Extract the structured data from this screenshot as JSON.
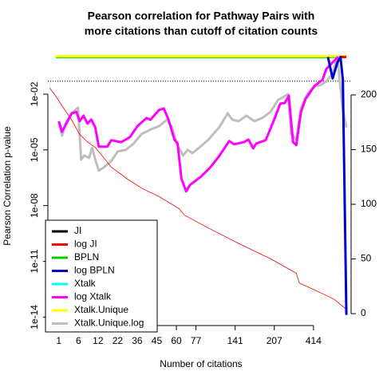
{
  "chart_data": {
    "type": "line",
    "title": [
      "Pearson correlation for Pathway Pairs with",
      "more citations than cutoff of citation counts"
    ],
    "xlabel": "Number of citations",
    "ylabel": "Pearson Correlation p-value",
    "xlim": [
      -1.8,
      75.6
    ],
    "xticks": [
      {
        "value": 1,
        "label": "1"
      },
      {
        "value": 6,
        "label": "6"
      },
      {
        "value": 11,
        "label": "12"
      },
      {
        "value": 16,
        "label": "22"
      },
      {
        "value": 21,
        "label": "36"
      },
      {
        "value": 26,
        "label": "45"
      },
      {
        "value": 31,
        "label": "60"
      },
      {
        "value": 36,
        "label": "77"
      },
      {
        "value": 46,
        "label": "141"
      },
      {
        "value": 56,
        "label": "207"
      },
      {
        "value": 66,
        "label": "414"
      }
    ],
    "ylim": [
      3.5e-15,
      3.76
    ],
    "log_y": true,
    "yticks": [
      {
        "value": 1e-14,
        "label": "1e-14"
      },
      {
        "value": 1e-11,
        "label": "1e-11"
      },
      {
        "value": 1e-08,
        "label": "1e-08"
      },
      {
        "value": 1e-05,
        "label": "1e-05"
      },
      {
        "value": 0.01,
        "label": "1e-02"
      }
    ],
    "y2lim": [
      -10.9,
      244.5
    ],
    "y2ticks": [
      0,
      50,
      100,
      150,
      200
    ],
    "hline": 0.05,
    "legend": "bottom-left",
    "series": [
      {
        "name": "JI",
        "color": "#000000",
        "width": 3,
        "x": [],
        "values": []
      },
      {
        "name": "log JI",
        "color": "#ff0000",
        "width": 3,
        "x": [
          72.9,
          74.4
        ],
        "values": [
          1,
          1
        ]
      },
      {
        "name": "BPLN",
        "color": "#00cd00",
        "width": 3,
        "x": [
          0.2,
          74.4
        ],
        "values": [
          1,
          1
        ]
      },
      {
        "name": "log BPLN",
        "color": "#0000cd",
        "width": 3,
        "x": [
          69.7,
          70.9,
          72.1,
          72.9,
          73.5,
          74.4
        ],
        "values": [
          1,
          0.07,
          0.5,
          1,
          0.06,
          1.3e-14
        ]
      },
      {
        "name": "Xtalk",
        "color": "#00ffff",
        "width": 3,
        "x": [],
        "values": []
      },
      {
        "name": "log Xtalk",
        "color": "#ff00ff",
        "width": 3,
        "x": [
          1,
          1.8,
          4.3,
          5.5,
          6.3,
          7.3,
          8.3,
          9.3,
          10.3,
          11.2,
          13.4,
          14.4,
          16.9,
          19.1,
          21.1,
          23.4,
          24.4,
          26.6,
          27.8,
          29.0,
          30.5,
          31.3,
          32.3,
          33.5,
          34.5,
          37.2,
          39.6,
          41.9,
          44.5,
          45.7,
          48.2,
          49.4,
          50.6,
          51.4,
          53.8,
          56.3,
          57.5,
          58.7,
          59.7,
          60.8,
          61.6,
          62.8,
          64.0,
          66.2,
          68.3,
          69.3,
          71.3,
          72.3
        ],
        "values": [
          0.00035,
          9.5e-05,
          0.00093,
          0.0011,
          0.00035,
          0.00069,
          0.00026,
          0.00043,
          0.00016,
          1.5e-05,
          1.5e-05,
          3.3e-05,
          2.6e-05,
          4.8e-05,
          0.00019,
          0.00052,
          0.00042,
          0.0014,
          0.0017,
          0.00042,
          3.6e-05,
          2.2e-05,
          2.8e-07,
          5.8e-08,
          1.3e-07,
          3.5e-07,
          1.1e-06,
          4.5e-06,
          3e-05,
          2e-05,
          2.6e-05,
          3.6e-05,
          1.2e-05,
          2.2e-05,
          3.3e-05,
          0.00063,
          0.003,
          0.0034,
          0.0082,
          2.6e-05,
          1.8e-05,
          0.0011,
          0.0055,
          0.027,
          0.059,
          0.23,
          0.63,
          1
        ]
      },
      {
        "name": "Xtalk.Unique",
        "color": "#ffff00",
        "width": 3,
        "x": [
          0.2,
          74.4
        ],
        "values": [
          1.1,
          1.1
        ]
      },
      {
        "name": "Xtalk.Unique.log",
        "color": "#bebebe",
        "width": 3,
        "x": [
          1,
          1.8,
          3.0,
          4.7,
          5.9,
          6.7,
          7.5,
          8.7,
          9.5,
          10.3,
          11.2,
          12.4,
          14.4,
          16.0,
          18.1,
          20.1,
          22.1,
          24.6,
          26.6,
          28.6,
          29.9,
          31.1,
          32.7,
          33.9,
          35.1,
          36.8,
          39.2,
          41.9,
          44.1,
          45.3,
          46.9,
          48.9,
          50.9,
          52.9,
          55.0,
          57.0,
          58.2,
          59.5,
          60.3,
          61.6,
          62.8,
          64.4,
          66.4,
          67.7,
          69.3,
          70.9,
          72.1,
          73.4,
          74.4
        ],
        "values": [
          0.00026,
          5.9e-05,
          0.00035,
          0.0011,
          0.0019,
          3e-06,
          5e-06,
          3.7e-06,
          1.3e-05,
          3e-06,
          7.6e-07,
          1.1e-06,
          2.5e-06,
          8.1e-06,
          1e-05,
          2.2e-05,
          7.1e-05,
          0.00013,
          0.00019,
          0.00042,
          0.00016,
          2.2e-05,
          5e-06,
          1e-05,
          6.6e-06,
          1.3e-05,
          3.6e-05,
          0.00016,
          0.00093,
          0.00042,
          0.00035,
          0.00069,
          0.00035,
          0.00052,
          0.0011,
          0.005,
          0.0067,
          0.01,
          7.1e-05,
          3.6e-05,
          0.0019,
          0.01,
          0.027,
          0.03,
          0.049,
          0.13,
          1.0,
          0.0019,
          0.00016
        ]
      },
      {
        "name": null,
        "color": "#ff0000",
        "width": 0.8,
        "axis": "y2",
        "x": [
          -1.4,
          0.2,
          2.2,
          4.3,
          6.3,
          8.3,
          10.3,
          14.4,
          18.5,
          22.5,
          26.6,
          31.7,
          33.1,
          38.8,
          47.0,
          55.1,
          61.6,
          62.4,
          67.3,
          71.3,
          74.4
        ],
        "values": [
          206.6,
          199,
          188,
          177,
          164,
          157,
          152,
          134,
          123,
          114,
          107,
          96,
          90,
          79,
          64,
          50,
          37,
          28,
          20,
          13,
          4
        ]
      }
    ]
  }
}
